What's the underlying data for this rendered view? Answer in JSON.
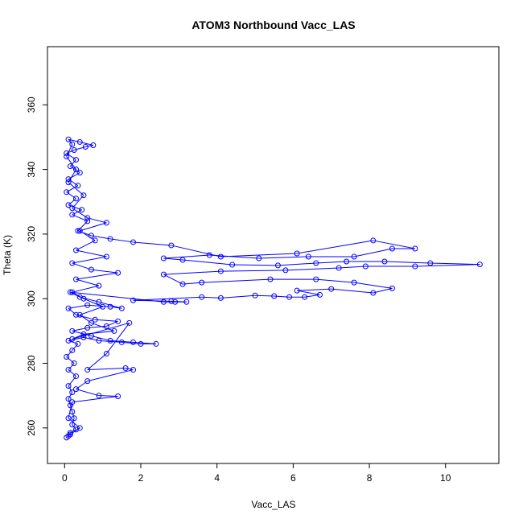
{
  "chart_data": {
    "type": "scatter",
    "title": "ATOM3 Northbound Vacc_LAS",
    "xlabel": "Vacc_LAS",
    "ylabel": "Theta (K)",
    "xlim": [
      -0.45,
      11.4
    ],
    "ylim": [
      249,
      378
    ],
    "xticks": [
      0,
      2,
      4,
      6,
      8,
      10
    ],
    "yticks": [
      260,
      280,
      300,
      320,
      340,
      360
    ],
    "grid": false,
    "legend": "none",
    "connect_points": true,
    "series": [
      {
        "color": "#0000ff",
        "points": [
          [
            0.05,
            257
          ],
          [
            0.1,
            257.5
          ],
          [
            0.15,
            258.5
          ],
          [
            0.3,
            259.5
          ],
          [
            0.2,
            261
          ],
          [
            0.25,
            263
          ],
          [
            0.2,
            265
          ],
          [
            0.15,
            267
          ],
          [
            0.1,
            269
          ],
          [
            0.2,
            271
          ],
          [
            0.1,
            273
          ],
          [
            0.3,
            276
          ],
          [
            0.1,
            278
          ],
          [
            0.25,
            280
          ],
          [
            0.05,
            282
          ],
          [
            0.2,
            284
          ],
          [
            0.35,
            286
          ],
          [
            0.1,
            287
          ],
          [
            0.5,
            288
          ],
          [
            0.9,
            287
          ],
          [
            1.5,
            286.5
          ],
          [
            2.0,
            286
          ],
          [
            2.4,
            286
          ],
          [
            1.8,
            286.5
          ],
          [
            1.2,
            287
          ],
          [
            0.7,
            288.5
          ],
          [
            0.2,
            290
          ],
          [
            0.6,
            291
          ],
          [
            1.1,
            291.5
          ],
          [
            1.4,
            293
          ],
          [
            0.8,
            293.5
          ],
          [
            0.3,
            295
          ],
          [
            0.1,
            297
          ],
          [
            0.6,
            298
          ],
          [
            1.2,
            297.5
          ],
          [
            1.5,
            297
          ],
          [
            0.9,
            299
          ],
          [
            0.4,
            300.5
          ],
          [
            0.15,
            302
          ],
          [
            2.6,
            299
          ],
          [
            2.9,
            299
          ],
          [
            3.2,
            299
          ],
          [
            2.8,
            299.2
          ],
          [
            1.8,
            299.5
          ],
          [
            3.6,
            300.5
          ],
          [
            4.1,
            300.2
          ],
          [
            5.0,
            301
          ],
          [
            5.5,
            300.8
          ],
          [
            5.9,
            300.5
          ],
          [
            6.3,
            300.5
          ],
          [
            6.7,
            301.2
          ],
          [
            6.1,
            302.5
          ],
          [
            7.0,
            303
          ],
          [
            8.1,
            301.8
          ],
          [
            8.6,
            303.2
          ],
          [
            7.6,
            305
          ],
          [
            6.6,
            306
          ],
          [
            5.4,
            306
          ],
          [
            3.6,
            305
          ],
          [
            3.1,
            304.5
          ],
          [
            2.6,
            307.5
          ],
          [
            4.1,
            308.5
          ],
          [
            5.8,
            308.8
          ],
          [
            7.2,
            309.5
          ],
          [
            7.9,
            310
          ],
          [
            9.2,
            310
          ],
          [
            10.9,
            310.6
          ],
          [
            9.6,
            311
          ],
          [
            8.4,
            311.5
          ],
          [
            7.4,
            311.5
          ],
          [
            6.6,
            311
          ],
          [
            5.6,
            310.3
          ],
          [
            4.4,
            310.5
          ],
          [
            3.1,
            312
          ],
          [
            2.6,
            312.5
          ],
          [
            3.8,
            313.5
          ],
          [
            5.1,
            312.5
          ],
          [
            6.4,
            313
          ],
          [
            7.6,
            313
          ],
          [
            8.6,
            315.5
          ],
          [
            9.2,
            315.5
          ],
          [
            8.1,
            318
          ],
          [
            6.1,
            314
          ],
          [
            4.1,
            313
          ],
          [
            2.8,
            316.5
          ],
          [
            1.8,
            317.5
          ],
          [
            1.2,
            318.5
          ],
          [
            0.7,
            319.5
          ],
          [
            0.35,
            321
          ],
          [
            0.6,
            324
          ],
          [
            0.2,
            326
          ],
          [
            0.45,
            327.5
          ],
          [
            0.1,
            329
          ],
          [
            0.3,
            331
          ],
          [
            0.05,
            333
          ],
          [
            0.35,
            335
          ],
          [
            0.1,
            337
          ],
          [
            0.4,
            339
          ],
          [
            0.15,
            341
          ],
          [
            0.3,
            343
          ],
          [
            0.05,
            345
          ],
          [
            0.25,
            346
          ],
          [
            0.55,
            347
          ],
          [
            0.75,
            347.5
          ],
          [
            0.4,
            348.5
          ],
          [
            0.1,
            349.3
          ],
          [
            0.2,
            347.8
          ],
          [
            0.05,
            344
          ],
          [
            0.3,
            340
          ],
          [
            0.1,
            336
          ],
          [
            0.5,
            332
          ],
          [
            0.2,
            328
          ],
          [
            0.6,
            325
          ],
          [
            1.1,
            323.5
          ],
          [
            0.4,
            321
          ],
          [
            0.8,
            318
          ],
          [
            0.3,
            315
          ],
          [
            1.1,
            313
          ],
          [
            0.2,
            311
          ],
          [
            0.7,
            309
          ],
          [
            1.4,
            308
          ],
          [
            0.3,
            306
          ],
          [
            0.9,
            304
          ],
          [
            0.2,
            302
          ],
          [
            0.5,
            300
          ],
          [
            1.0,
            297.5
          ],
          [
            0.4,
            295
          ],
          [
            0.7,
            292.5
          ],
          [
            1.3,
            290
          ],
          [
            0.5,
            289
          ],
          [
            0.2,
            287.5
          ],
          [
            1.7,
            292.5
          ],
          [
            1.1,
            283
          ],
          [
            0.6,
            278
          ],
          [
            1.6,
            278.5
          ],
          [
            1.8,
            278
          ],
          [
            0.6,
            274.5
          ],
          [
            0.3,
            272
          ],
          [
            0.9,
            270
          ],
          [
            1.4,
            269.8
          ],
          [
            0.2,
            268
          ],
          [
            0.1,
            263
          ],
          [
            0.4,
            260
          ],
          [
            0.15,
            258
          ]
        ]
      }
    ]
  }
}
